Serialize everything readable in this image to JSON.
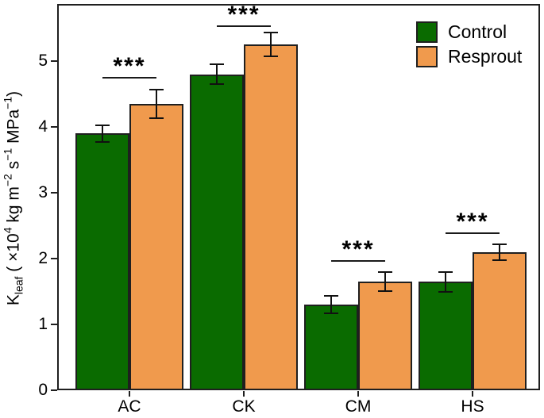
{
  "chart_data": {
    "type": "bar",
    "title": "",
    "categories": [
      "AC",
      "CK",
      "CM",
      "HS"
    ],
    "series": [
      {
        "name": "Control",
        "color": "#0A6B00",
        "values": [
          3.9,
          4.8,
          1.3,
          1.65
        ],
        "errors": [
          0.13,
          0.15,
          0.13,
          0.15
        ]
      },
      {
        "name": "Resprout",
        "color": "#F09A4D",
        "values": [
          4.35,
          5.25,
          1.65,
          2.1
        ],
        "errors": [
          0.22,
          0.18,
          0.14,
          0.12
        ]
      }
    ],
    "significance": [
      {
        "label": "***",
        "line_value": 4.76
      },
      {
        "label": "***",
        "line_value": 5.54
      },
      {
        "label": "***",
        "line_value": 1.98
      },
      {
        "label": "***",
        "line_value": 2.4
      }
    ],
    "ylabel_plain": "Kleaf ( ×10⁴ kg m⁻² s⁻¹ MPa⁻¹)",
    "ylabel_parts": [
      {
        "t": "K",
        "s": "n"
      },
      {
        "t": "leaf",
        "s": "sub"
      },
      {
        "t": " ( ×10",
        "s": "n"
      },
      {
        "t": "4",
        "s": "sup"
      },
      {
        "t": " kg m",
        "s": "n"
      },
      {
        "t": "−2",
        "s": "sup"
      },
      {
        "t": " s",
        "s": "n"
      },
      {
        "t": "−1",
        "s": "sup"
      },
      {
        "t": " MPa",
        "s": "n"
      },
      {
        "t": "−1",
        "s": "sup"
      },
      {
        "t": ")",
        "s": "n"
      }
    ],
    "xlabel": "",
    "yticks": [
      "0",
      "1",
      "2",
      "3",
      "4",
      "5"
    ],
    "ylim": [
      0,
      5.87
    ],
    "grid": false,
    "legend_position": "top-right-inside"
  }
}
